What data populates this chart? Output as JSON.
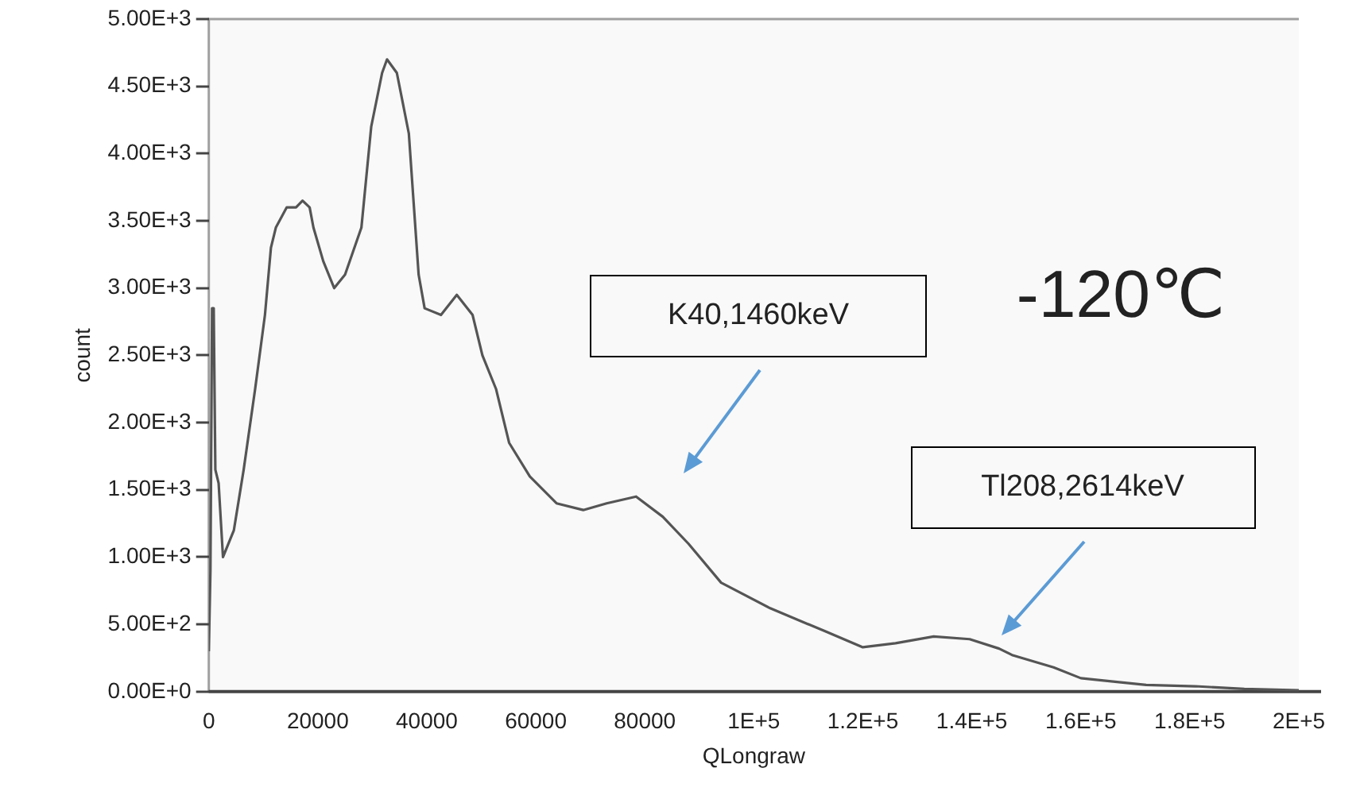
{
  "chart_data": {
    "type": "line",
    "xlabel": "QLongraw",
    "ylabel": "count",
    "grid": false,
    "legend": false,
    "marker": "none",
    "line_style": "solid",
    "xlim": [
      0,
      200000
    ],
    "ylim": [
      0,
      5000
    ],
    "xticks": [
      0,
      20000,
      40000,
      60000,
      80000,
      {
        "value": 100000,
        "label": "1E+5"
      },
      {
        "value": 120000,
        "label": "1.2E+5"
      },
      {
        "value": 140000,
        "label": "1.4E+5"
      },
      {
        "value": 160000,
        "label": "1.6E+5"
      },
      {
        "value": 180000,
        "label": "1.8E+5"
      },
      {
        "value": 200000,
        "label": "2E+5"
      }
    ],
    "yticks": [
      {
        "value": 0,
        "label": "0.00E+0"
      },
      {
        "value": 500,
        "label": "5.00E+2"
      },
      {
        "value": 1000,
        "label": "1.00E+3"
      },
      {
        "value": 1500,
        "label": "1.50E+3"
      },
      {
        "value": 2000,
        "label": "2.00E+3"
      },
      {
        "value": 2500,
        "label": "2.50E+3"
      },
      {
        "value": 3000,
        "label": "3.00E+3"
      },
      {
        "value": 3500,
        "label": "3.50E+3"
      },
      {
        "value": 4000,
        "label": "4.00E+3"
      },
      {
        "value": 4500,
        "label": "4.50E+3"
      },
      {
        "value": 5000,
        "label": "5.00E+3"
      }
    ],
    "series": [
      {
        "color": "#555555",
        "x": [
          0,
          300,
          600,
          900,
          1200,
          1800,
          2600,
          4600,
          6400,
          8500,
          10300,
          11400,
          12300,
          14300,
          16000,
          17200,
          18500,
          19200,
          21000,
          23000,
          25000,
          28000,
          29800,
          31800,
          32700,
          34500,
          36700,
          38500,
          39600,
          42600,
          45500,
          48400,
          50200,
          52700,
          55100,
          58900,
          63800,
          68700,
          73000,
          78400,
          83300,
          88000,
          94000,
          103000,
          113000,
          120000,
          126000,
          133000,
          139600,
          145000,
          147500,
          155000,
          160000,
          167000,
          172000,
          181000,
          190000,
          200000
        ],
        "values": [
          300,
          900,
          2850,
          2850,
          1650,
          1550,
          1000,
          1200,
          1650,
          2250,
          2800,
          3300,
          3450,
          3600,
          3600,
          3650,
          3600,
          3450,
          3200,
          3000,
          3100,
          3450,
          4200,
          4600,
          4700,
          4600,
          4150,
          3100,
          2850,
          2800,
          2950,
          2800,
          2500,
          2250,
          1850,
          1600,
          1400,
          1350,
          1400,
          1450,
          1300,
          1100,
          810,
          620,
          450,
          330,
          360,
          410,
          390,
          320,
          270,
          180,
          100,
          70,
          50,
          40,
          20,
          10
        ]
      }
    ],
    "annotations": [
      "K40,1460keV",
      "Tl208,2614keV",
      "-120℃"
    ]
  }
}
